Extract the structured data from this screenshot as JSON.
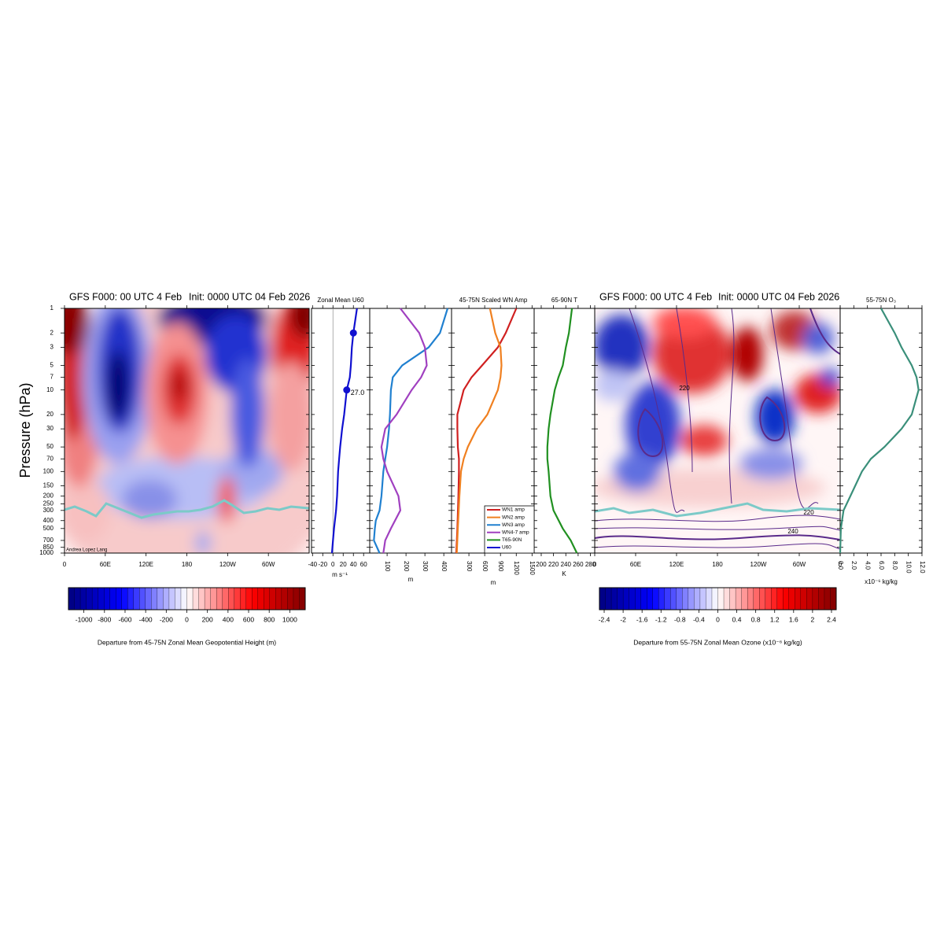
{
  "chart_data": [
    {
      "type": "heatmap",
      "title": "GFS F000: 00 UTC 4 Feb",
      "subtitle": "Init: 0000 UTC 04 Feb 2026",
      "y_label": "Pressure (hPa)",
      "log_y": true,
      "ylim": [
        1,
        1000
      ],
      "yticks": [
        1,
        2,
        3,
        5,
        7,
        10,
        20,
        30,
        50,
        70,
        100,
        150,
        200,
        250,
        300,
        400,
        500,
        700,
        850,
        1000
      ],
      "xlim": [
        0,
        360
      ],
      "xticks": [
        0,
        {
          "value": 60,
          "label": "60E"
        },
        {
          "value": 120,
          "label": "120E"
        },
        180,
        {
          "value": 240,
          "label": "120W"
        },
        {
          "value": 300,
          "label": "60W"
        }
      ],
      "colorbar": {
        "lim": [
          -1150,
          1150
        ],
        "ticks": [
          -1000,
          -800,
          -600,
          -400,
          -200,
          0,
          200,
          400,
          600,
          800,
          1000
        ],
        "label": "Departure from 45-75N Zonal Mean Geopotential Height (m)"
      },
      "credit": "Andrea Lopez Lang"
    },
    {
      "type": "line",
      "title": "Zonal Mean U60",
      "x_label": "m s⁻¹",
      "xlim": [
        -42,
        72
      ],
      "xticks": [
        -40,
        -20,
        0,
        20,
        40,
        60
      ],
      "annotation": "27.0",
      "series": [
        {
          "name": "U60",
          "color": "#1010d0",
          "y": [
            1,
            2,
            3,
            5,
            7,
            10,
            20,
            30,
            50,
            70,
            100,
            200,
            300,
            500,
            700,
            1000
          ],
          "values": [
            47,
            40,
            37,
            35,
            33,
            27,
            22,
            18,
            14,
            12,
            10,
            8,
            6,
            2,
            0,
            -2
          ]
        }
      ]
    },
    {
      "type": "line",
      "x_label": "m",
      "xlim": [
        8,
        441
      ],
      "xticks": [
        100,
        200,
        300,
        400
      ],
      "series": [
        {
          "name": "WN3 amp",
          "color": "#2080d0",
          "y": [
            1,
            2,
            3,
            5,
            7,
            10,
            20,
            30,
            50,
            70,
            100,
            200,
            300,
            400,
            500,
            700,
            1000
          ],
          "values": [
            420,
            380,
            320,
            180,
            130,
            120,
            115,
            110,
            100,
            90,
            80,
            70,
            60,
            40,
            35,
            30,
            60
          ]
        },
        {
          "name": "WN4-7 amp",
          "color": "#a040c0",
          "y": [
            1,
            2,
            3,
            5,
            7,
            10,
            20,
            30,
            50,
            70,
            100,
            200,
            300,
            500,
            700,
            1000
          ],
          "values": [
            170,
            270,
            300,
            310,
            280,
            230,
            150,
            90,
            70,
            80,
            100,
            160,
            170,
            120,
            90,
            80
          ]
        }
      ]
    },
    {
      "type": "line",
      "title": "45-75N Scaled WN Amp",
      "x_label": "m",
      "xlim": [
        -30,
        1540
      ],
      "xticks": [
        300,
        600,
        900,
        1200,
        1500
      ],
      "series": [
        {
          "name": "WN1 amp",
          "color": "#d02020",
          "y": [
            1,
            2,
            3,
            5,
            7,
            10,
            20,
            30,
            50,
            70,
            100,
            200,
            500,
            1000
          ],
          "values": [
            1200,
            1000,
            850,
            550,
            350,
            200,
            80,
            80,
            90,
            110,
            110,
            100,
            80,
            60
          ]
        },
        {
          "name": "WN2 amp",
          "color": "#f08020",
          "y": [
            1,
            2,
            3,
            5,
            7,
            10,
            20,
            30,
            50,
            70,
            100,
            200,
            500,
            1000
          ],
          "values": [
            700,
            800,
            900,
            920,
            900,
            850,
            650,
            450,
            280,
            200,
            150,
            120,
            90,
            70
          ]
        }
      ]
    },
    {
      "type": "line",
      "title": "65-90N T",
      "x_label": "K",
      "xlim": [
        188.5,
        287
      ],
      "xticks": [
        200,
        220,
        240,
        260,
        280
      ],
      "series": [
        {
          "name": "T65-90N",
          "color": "#209020",
          "y": [
            1,
            2,
            3,
            5,
            7,
            10,
            20,
            30,
            50,
            70,
            100,
            200,
            300,
            500,
            700,
            1000
          ],
          "values": [
            250,
            245,
            240,
            235,
            228,
            222,
            215,
            212,
            210,
            210,
            212,
            215,
            220,
            235,
            248,
            258
          ]
        }
      ]
    },
    {
      "type": "heatmap",
      "title": "GFS F000: 00 UTC 4 Feb",
      "subtitle": "Init: 0000 UTC 04 Feb 2026",
      "xlim": [
        0,
        360
      ],
      "xticks": [
        0,
        {
          "value": 60,
          "label": "60E"
        },
        {
          "value": 120,
          "label": "120E"
        },
        180,
        {
          "value": 240,
          "label": "120W"
        },
        {
          "value": 300,
          "label": "60W"
        },
        {
          "value": 360,
          "label": "0"
        }
      ],
      "contour_labels": [
        "220",
        "220",
        "240"
      ],
      "colorbar": {
        "lim": [
          -2.5,
          2.5
        ],
        "ticks": [
          -2.4,
          -2,
          -1.6,
          -1.2,
          -0.8,
          -0.4,
          0,
          0.4,
          0.8,
          1.2,
          1.6,
          2,
          2.4
        ],
        "label": "Departure from 55-75N Zonal Mean Ozone (x10⁻⁶ kg/kg)"
      }
    },
    {
      "type": "line",
      "title": "55-75N O₃",
      "x_label": "x10⁻⁶ kg/kg",
      "xlim": [
        0,
        12
      ],
      "xticks": [
        {
          "value": 0,
          "label": "0.0"
        },
        {
          "value": 2,
          "label": "2.0"
        },
        {
          "value": 4,
          "label": "4.0"
        },
        {
          "value": 6,
          "label": "6.0"
        },
        {
          "value": 8,
          "label": "8.0"
        },
        {
          "value": 10,
          "label": "10.0"
        },
        {
          "value": 12,
          "label": "12.0"
        }
      ],
      "series": [
        {
          "name": "O3",
          "color": "#3a8f7a",
          "y": [
            1,
            2,
            3,
            5,
            7,
            10,
            20,
            30,
            50,
            70,
            100,
            200,
            300,
            500,
            1000
          ],
          "values": [
            6,
            8,
            9,
            10.5,
            11.2,
            11.5,
            10.5,
            9,
            6.5,
            4.5,
            3.2,
            1.5,
            0.5,
            0.1,
            0
          ]
        }
      ]
    }
  ]
}
